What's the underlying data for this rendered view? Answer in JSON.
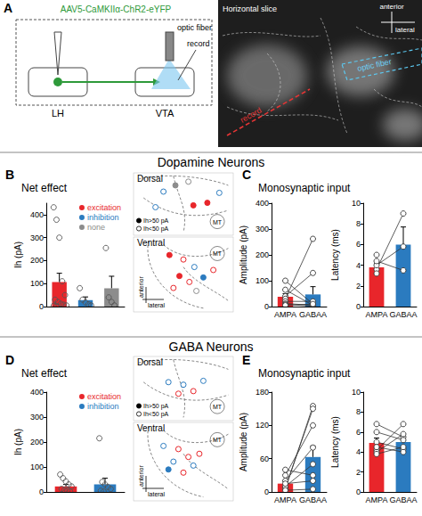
{
  "figure": {
    "panel_a": {
      "label": "A",
      "vector": "AAV5-CaMKIIα-ChR2-eYFP",
      "regions": [
        "LH",
        "VTA"
      ],
      "schematic_fiber": "optic fiber",
      "schematic_record": "record",
      "image_title": "Horizontal slice",
      "image_anterior": "anterior",
      "image_lateral": "lateral",
      "image_fiber": "optic fiber",
      "image_record": "record"
    },
    "sections": [
      "Dopamine Neurons",
      "GABA Neurons"
    ],
    "maps": [
      {
        "panel": "B",
        "legend": [
          {
            "label": "Ih>50 pA",
            "large": true
          },
          {
            "label": "Ih<50 pA",
            "large": false
          }
        ],
        "dorsal": {
          "label": "Dorsal",
          "landmark": "MT",
          "points": [
            {
              "x": 30,
              "y": 30,
              "effect": "inhibition",
              "large": false
            },
            {
              "x": 42,
              "y": 20,
              "effect": "none",
              "large": true
            },
            {
              "x": 55,
              "y": 14,
              "effect": "none",
              "large": false
            },
            {
              "x": 60,
              "y": 52,
              "effect": "excitation",
              "large": true
            },
            {
              "x": 74,
              "y": 48,
              "effect": "excitation",
              "large": true
            },
            {
              "x": 22,
              "y": 55,
              "effect": "inhibition",
              "large": false
            },
            {
              "x": 86,
              "y": 32,
              "effect": "inhibition",
              "large": false
            }
          ]
        },
        "ventral": {
          "label": "Ventral",
          "landmark": "MT",
          "compass": [
            "anterior",
            "lateral"
          ],
          "points": [
            {
              "x": 36,
              "y": 24,
              "effect": "excitation",
              "large": true
            },
            {
              "x": 50,
              "y": 30,
              "effect": "excitation",
              "large": false
            },
            {
              "x": 61,
              "y": 40,
              "effect": "inhibition",
              "large": false
            },
            {
              "x": 46,
              "y": 52,
              "effect": "excitation",
              "large": true
            },
            {
              "x": 56,
              "y": 60,
              "effect": "excitation",
              "large": false
            },
            {
              "x": 70,
              "y": 54,
              "effect": "inhibition",
              "large": true
            },
            {
              "x": 40,
              "y": 68,
              "effect": "excitation",
              "large": false
            },
            {
              "x": 63,
              "y": 72,
              "effect": "none",
              "large": false
            },
            {
              "x": 80,
              "y": 44,
              "effect": "excitation",
              "large": false
            }
          ]
        }
      },
      {
        "panel": "D",
        "legend": [
          {
            "label": "Ih>50 pA",
            "large": true
          },
          {
            "label": "Ih<50 pA",
            "large": false
          }
        ],
        "dorsal": {
          "label": "Dorsal",
          "landmark": "MT",
          "points": [
            {
              "x": 35,
              "y": 40,
              "effect": "inhibition",
              "large": false
            },
            {
              "x": 50,
              "y": 44,
              "effect": "inhibition",
              "large": false
            },
            {
              "x": 60,
              "y": 54,
              "effect": "excitation",
              "large": false
            },
            {
              "x": 45,
              "y": 58,
              "effect": "excitation",
              "large": false
            },
            {
              "x": 70,
              "y": 38,
              "effect": "inhibition",
              "large": false
            }
          ]
        },
        "ventral": {
          "label": "Ventral",
          "landmark": "MT",
          "compass": [
            "anterior",
            "lateral"
          ],
          "points": [
            {
              "x": 30,
              "y": 30,
              "effect": "inhibition",
              "large": false
            },
            {
              "x": 45,
              "y": 34,
              "effect": "excitation",
              "large": false
            },
            {
              "x": 55,
              "y": 44,
              "effect": "excitation",
              "large": false
            },
            {
              "x": 40,
              "y": 50,
              "effect": "inhibition",
              "large": false
            },
            {
              "x": 60,
              "y": 55,
              "effect": "inhibition",
              "large": false
            },
            {
              "x": 50,
              "y": 64,
              "effect": "excitation",
              "large": false
            },
            {
              "x": 66,
              "y": 40,
              "effect": "excitation",
              "large": false
            },
            {
              "x": 35,
              "y": 60,
              "effect": "inhibition",
              "large": true
            }
          ]
        }
      }
    ]
  },
  "chart_data": [
    {
      "panel": "B",
      "title": "Net effect",
      "type": "bar",
      "categories": [
        "excitation",
        "inhibition",
        "none"
      ],
      "colors": [
        "#e8262b",
        "#2b7bbf",
        "#8c8c8c"
      ],
      "values": [
        107,
        28,
        80
      ],
      "errors": [
        38,
        14,
        52
      ],
      "points": [
        [
          432,
          378,
          300,
          110,
          50,
          30,
          20,
          12,
          8,
          5,
          3,
          2
        ],
        [
          80,
          30,
          18,
          10,
          5
        ],
        [
          255,
          40,
          20,
          5
        ]
      ],
      "ylabel": "Ih (pA)",
      "ylim": [
        0,
        450
      ],
      "yticks": [
        0,
        100,
        200,
        300,
        400
      ],
      "legend": "upper right",
      "tick_labels": "y"
    },
    {
      "panel": "C",
      "title": "Monosynaptic input",
      "type": "bar",
      "categories": [
        "AMPA",
        "GABAA"
      ],
      "colors": [
        "#e8262b",
        "#2b7bbf"
      ],
      "values": [
        38,
        47
      ],
      "errors": [
        12,
        30
      ],
      "pairs": [
        [
          100,
          10
        ],
        [
          65,
          5
        ],
        [
          40,
          130
        ],
        [
          30,
          262
        ],
        [
          20,
          20
        ],
        [
          12,
          5
        ],
        [
          8,
          2
        ],
        [
          5,
          10
        ]
      ],
      "ylabel": "Amplitude (pA)",
      "ylim": [
        0,
        400
      ],
      "yticks": [
        0,
        100,
        200,
        300,
        400
      ]
    },
    {
      "type": "bar",
      "categories": [
        "AMPA",
        "GABAA"
      ],
      "colors": [
        "#e8262b",
        "#2b7bbf"
      ],
      "values": [
        3.8,
        6.0
      ],
      "errors": [
        0.4,
        1.7
      ],
      "pairs": [
        [
          3.6,
          9.0
        ],
        [
          4.0,
          5.8
        ],
        [
          4.4,
          3.5
        ],
        [
          3.2,
          null
        ],
        [
          5.0,
          null
        ]
      ],
      "ylabel": "Latency (ms)",
      "ylim": [
        0,
        10
      ],
      "yticks": [
        0,
        2,
        4,
        6,
        8,
        10
      ]
    },
    {
      "panel": "D",
      "title": "Net effect",
      "type": "bar",
      "categories": [
        "excitation",
        "inhibition"
      ],
      "colors": [
        "#e8262b",
        "#2b7bbf"
      ],
      "values": [
        22,
        30
      ],
      "errors": [
        8,
        25
      ],
      "points": [
        [
          70,
          55,
          42,
          30,
          22,
          12,
          8,
          5,
          2
        ],
        [
          215,
          40,
          30,
          20,
          12,
          5,
          2
        ]
      ],
      "ylabel": "Ih (pA)",
      "ylim": [
        0,
        400
      ],
      "yticks": [
        0,
        100,
        200,
        300,
        400
      ],
      "legend": "upper right",
      "tick_labels": "y"
    },
    {
      "panel": "E",
      "title": "Monosynaptic input",
      "type": "bar",
      "categories": [
        "AMPA",
        "GABAA"
      ],
      "colors": [
        "#e8262b",
        "#2b7bbf"
      ],
      "values": [
        15,
        63
      ],
      "errors": [
        5,
        20
      ],
      "pairs": [
        [
          5,
          155
        ],
        [
          8,
          150
        ],
        [
          30,
          120
        ],
        [
          20,
          80
        ],
        [
          10,
          50
        ],
        [
          40,
          30
        ],
        [
          15,
          20
        ],
        [
          3,
          5
        ]
      ],
      "ylabel": "Amplitude (pA)",
      "ylim": [
        0,
        180
      ],
      "yticks": [
        0,
        60,
        120,
        180
      ]
    },
    {
      "type": "bar",
      "categories": [
        "AMPA",
        "GABAA"
      ],
      "colors": [
        "#e8262b",
        "#2b7bbf"
      ],
      "values": [
        4.9,
        5.0
      ],
      "errors": [
        0.5,
        0.5
      ],
      "pairs": [
        [
          4.2,
          6.8
        ],
        [
          6.8,
          5.5
        ],
        [
          5.0,
          4.3
        ],
        [
          4.0,
          5.8
        ],
        [
          4.5,
          4.0
        ],
        [
          6.0,
          5.2
        ],
        [
          3.8,
          4.5
        ]
      ],
      "ylabel": "Latency (ms)",
      "ylim": [
        0,
        10
      ],
      "yticks": [
        0,
        2,
        4,
        6,
        8,
        10
      ]
    }
  ]
}
